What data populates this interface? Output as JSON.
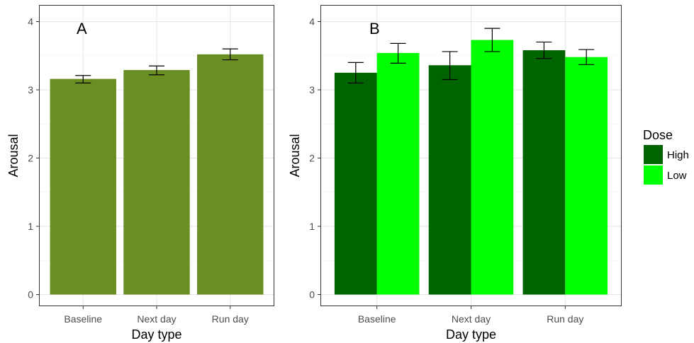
{
  "chart_data": [
    {
      "type": "bar",
      "panel_label": "A",
      "categories": [
        "Baseline",
        "Next day",
        "Run day"
      ],
      "series": [
        {
          "values": [
            3.16,
            3.29,
            3.52
          ],
          "err_low": [
            3.1,
            3.22,
            3.44
          ],
          "err_high": [
            3.21,
            3.35,
            3.6
          ],
          "color": "#6b8e23"
        }
      ],
      "xlabel": "Day type",
      "ylabel": "Arousal",
      "ylim": [
        0,
        4
      ],
      "yticks": [
        "0",
        "1",
        "2",
        "3",
        "4"
      ],
      "grid": true
    },
    {
      "type": "bar",
      "panel_label": "B",
      "categories": [
        "Baseline",
        "Next day",
        "Run day"
      ],
      "series": [
        {
          "name": "High",
          "values": [
            3.25,
            3.36,
            3.58
          ],
          "err_low": [
            3.1,
            3.15,
            3.46
          ],
          "err_high": [
            3.4,
            3.56,
            3.7
          ],
          "color": "#006400"
        },
        {
          "name": "Low",
          "values": [
            3.54,
            3.73,
            3.48
          ],
          "err_low": [
            3.39,
            3.56,
            3.37
          ],
          "err_high": [
            3.68,
            3.9,
            3.59
          ],
          "color": "#00ff00"
        }
      ],
      "xlabel": "Day type",
      "ylabel": "Arousal",
      "ylim": [
        0,
        4
      ],
      "yticks": [
        "0",
        "1",
        "2",
        "3",
        "4"
      ],
      "grid": true,
      "legend": {
        "title": "Dose",
        "position": "right"
      }
    }
  ]
}
